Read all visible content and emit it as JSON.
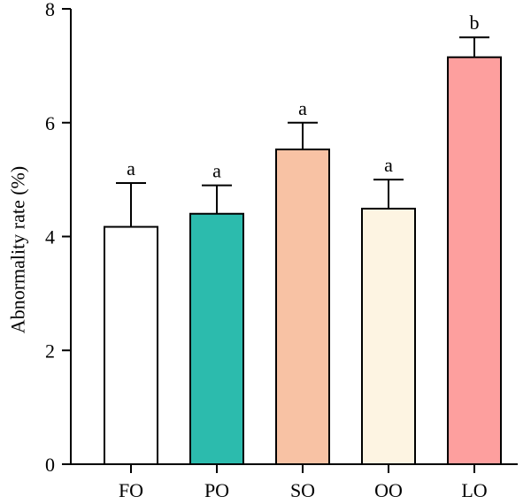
{
  "chart_data": {
    "type": "bar",
    "categories": [
      "FO",
      "PO",
      "SO",
      "OO",
      "LO"
    ],
    "values": [
      4.17,
      4.4,
      5.53,
      4.49,
      7.15
    ],
    "errors": [
      0.77,
      0.5,
      0.47,
      0.51,
      0.35
    ],
    "significance": [
      "a",
      "a",
      "a",
      "a",
      "b"
    ],
    "colors": [
      "#ffffff",
      "#2cbbad",
      "#f8c2a4",
      "#fdf4e2",
      "#fd9f9e"
    ],
    "edge_color": "#000000",
    "ylabel": "Abnormality rate (%)",
    "xlabel": "",
    "ylim": [
      0,
      8
    ],
    "yticks": [
      0,
      2,
      4,
      6,
      8
    ],
    "grid": false,
    "legend": "none"
  }
}
